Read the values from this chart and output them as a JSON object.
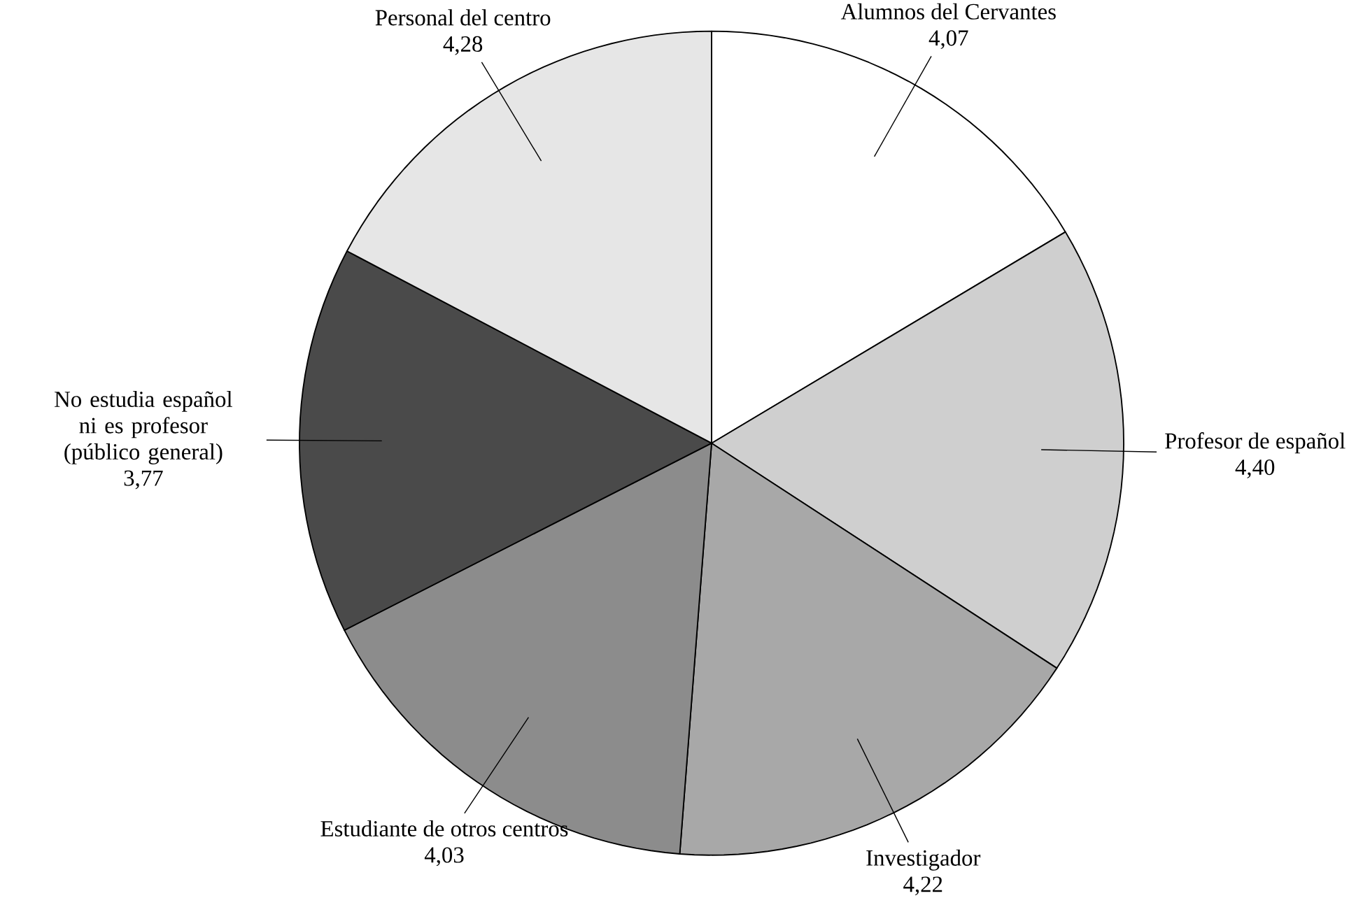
{
  "chart_data": {
    "type": "pie",
    "categories": [
      "Alumnos del Cervantes",
      "Profesor de español",
      "Investigador",
      "Estudiante de otros centros",
      "No estudia español ni es profesor (público general)",
      "Personal del centro"
    ],
    "values": [
      4.07,
      4.4,
      4.22,
      4.03,
      3.77,
      4.28
    ],
    "value_labels": [
      "4,07",
      "4,40",
      "4,22",
      "4,03",
      "3,77",
      "4,28"
    ],
    "colors": [
      "#ffffff",
      "#cfcfcf",
      "#a8a8a8",
      "#8c8c8c",
      "#4a4a4a",
      "#e6e6e6"
    ]
  }
}
